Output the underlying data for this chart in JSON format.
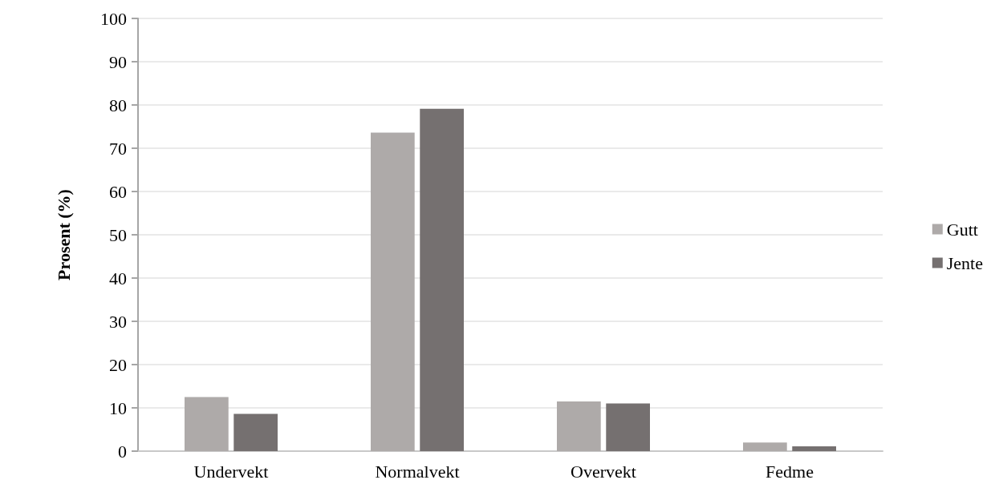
{
  "chart_data": {
    "type": "bar",
    "ylabel": "Prosent (%)",
    "categories": [
      "Undervekt",
      "Normalvekt",
      "Overvekt",
      "Fedme"
    ],
    "series": [
      {
        "name": "Gutt",
        "color": "#aeaaa9",
        "values": [
          12.5,
          73.6,
          11.5,
          2.0
        ]
      },
      {
        "name": "Jente",
        "color": "#757070",
        "values": [
          8.6,
          79.1,
          11.0,
          1.1
        ]
      }
    ],
    "ylim": [
      0,
      100
    ],
    "yticks": [
      0,
      10,
      20,
      30,
      40,
      50,
      60,
      70,
      80,
      90,
      100
    ],
    "grid": "y",
    "legend": "right"
  }
}
